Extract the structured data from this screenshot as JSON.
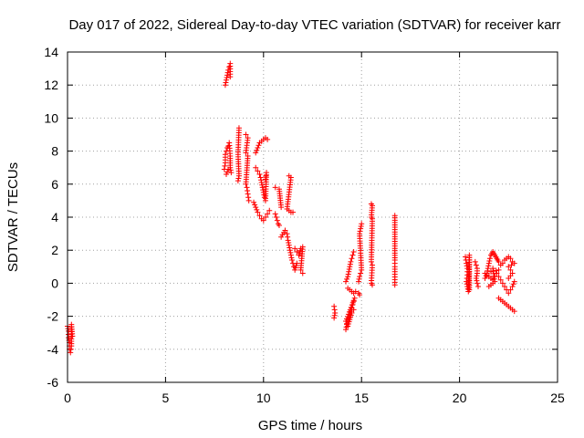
{
  "chart_data": {
    "type": "scatter",
    "title": "Day 017 of 2022, Sidereal Day-to-day VTEC variation (SDTVAR) for receiver karr",
    "xlabel": "GPS time / hours",
    "ylabel": "SDTVAR / TECUs",
    "xlim": [
      0,
      25
    ],
    "ylim": [
      -6,
      14
    ],
    "xticks": [
      0,
      5,
      10,
      15,
      20,
      25
    ],
    "yticks": [
      -6,
      -4,
      -2,
      0,
      2,
      4,
      6,
      8,
      10,
      12,
      14
    ],
    "grid": true,
    "marker": "plus",
    "color": "#ff0000",
    "series": [
      {
        "name": "SDTVAR",
        "segments": [
          [
            [
              0.0,
              -2.6
            ],
            [
              0.05,
              -2.9
            ],
            [
              0.05,
              -3.3
            ],
            [
              0.1,
              -3.6
            ],
            [
              0.1,
              -4.0
            ],
            [
              0.15,
              -4.2
            ],
            [
              0.2,
              -3.8
            ],
            [
              0.2,
              -2.5
            ],
            [
              0.25,
              -3.2
            ]
          ],
          [
            [
              8.05,
              12.0
            ],
            [
              8.1,
              12.3
            ],
            [
              8.15,
              12.6
            ],
            [
              8.2,
              12.9
            ],
            [
              8.25,
              13.1
            ],
            [
              8.3,
              13.3
            ],
            [
              8.3,
              12.5
            ]
          ],
          [
            [
              8.0,
              6.9
            ],
            [
              8.05,
              7.3
            ],
            [
              8.05,
              7.8
            ],
            [
              8.1,
              8.0
            ],
            [
              8.15,
              8.2
            ],
            [
              8.2,
              8.3
            ],
            [
              8.25,
              8.5
            ],
            [
              8.3,
              7.7
            ],
            [
              8.3,
              7.0
            ],
            [
              8.35,
              6.7
            ],
            [
              8.2,
              6.9
            ],
            [
              8.1,
              6.6
            ]
          ],
          [
            [
              8.75,
              9.4
            ],
            [
              8.7,
              7.8
            ],
            [
              8.75,
              6.5
            ],
            [
              8.7,
              6.2
            ]
          ],
          [
            [
              9.1,
              9.0
            ],
            [
              9.2,
              8.8
            ],
            [
              9.1,
              7.9
            ],
            [
              9.2,
              7.7
            ],
            [
              9.1,
              6.0
            ],
            [
              9.15,
              5.8
            ],
            [
              9.2,
              5.4
            ],
            [
              9.25,
              5.0
            ]
          ],
          [
            [
              9.6,
              7.9
            ],
            [
              9.7,
              8.2
            ],
            [
              9.8,
              8.5
            ],
            [
              9.9,
              8.6
            ],
            [
              10.0,
              8.7
            ],
            [
              10.1,
              8.8
            ],
            [
              10.2,
              8.7
            ]
          ],
          [
            [
              9.6,
              7.0
            ],
            [
              9.7,
              6.8
            ],
            [
              9.8,
              6.6
            ],
            [
              9.85,
              6.4
            ],
            [
              9.9,
              6.1
            ],
            [
              9.95,
              5.8
            ],
            [
              10.0,
              5.5
            ],
            [
              10.05,
              5.2
            ],
            [
              10.1,
              5.0
            ],
            [
              10.15,
              6.7
            ],
            [
              10.1,
              6.3
            ]
          ],
          [
            [
              9.5,
              4.9
            ],
            [
              9.6,
              4.6
            ],
            [
              9.7,
              4.3
            ],
            [
              9.8,
              4.1
            ],
            [
              9.9,
              3.9
            ],
            [
              10.0,
              3.8
            ],
            [
              10.1,
              4.0
            ],
            [
              10.2,
              4.2
            ],
            [
              10.3,
              4.4
            ]
          ],
          [
            [
              10.6,
              5.8
            ],
            [
              10.8,
              5.7
            ],
            [
              10.9,
              4.6
            ]
          ],
          [
            [
              10.6,
              4.2
            ],
            [
              10.65,
              4.0
            ],
            [
              10.7,
              3.8
            ],
            [
              10.75,
              3.6
            ],
            [
              10.8,
              3.5
            ]
          ],
          [
            [
              11.3,
              6.5
            ],
            [
              11.4,
              6.4
            ],
            [
              11.2,
              4.5
            ],
            [
              11.3,
              4.4
            ],
            [
              11.4,
              4.3
            ],
            [
              11.5,
              4.3
            ]
          ],
          [
            [
              10.9,
              2.8
            ],
            [
              11.1,
              3.2
            ],
            [
              11.2,
              3.0
            ],
            [
              11.25,
              2.6
            ],
            [
              11.3,
              2.3
            ],
            [
              11.35,
              2.0
            ],
            [
              11.4,
              1.7
            ],
            [
              11.45,
              1.4
            ],
            [
              11.5,
              1.2
            ],
            [
              11.55,
              1.0
            ],
            [
              11.6,
              0.8
            ],
            [
              11.7,
              1.2
            ]
          ],
          [
            [
              11.6,
              2.1
            ],
            [
              11.7,
              1.9
            ],
            [
              11.8,
              1.7
            ],
            [
              11.9,
              2.1
            ],
            [
              12.0,
              2.2
            ],
            [
              11.9,
              0.8
            ],
            [
              12.0,
              0.6
            ]
          ],
          [
            [
              13.6,
              -1.4
            ],
            [
              13.65,
              -1.8
            ],
            [
              13.6,
              -2.1
            ]
          ],
          [
            [
              14.2,
              -2.8
            ],
            [
              14.25,
              -2.5
            ],
            [
              14.3,
              -2.3
            ],
            [
              14.35,
              -2.1
            ],
            [
              14.4,
              -1.9
            ],
            [
              14.45,
              -1.7
            ],
            [
              14.5,
              -1.5
            ],
            [
              14.55,
              -1.3
            ],
            [
              14.6,
              -1.1
            ],
            [
              14.65,
              -0.9
            ],
            [
              14.2,
              -2.3
            ],
            [
              14.3,
              -2.6
            ],
            [
              14.4,
              -2.2
            ],
            [
              14.5,
              -1.8
            ],
            [
              14.6,
              -1.6
            ]
          ],
          [
            [
              14.2,
              0.1
            ],
            [
              14.3,
              0.4
            ],
            [
              14.35,
              0.7
            ],
            [
              14.4,
              1.0
            ],
            [
              14.45,
              1.3
            ],
            [
              14.5,
              1.5
            ],
            [
              14.55,
              1.7
            ],
            [
              14.6,
              1.9
            ]
          ],
          [
            [
              14.3,
              -0.3
            ],
            [
              14.4,
              -0.4
            ],
            [
              14.5,
              -0.5
            ],
            [
              14.6,
              -0.6
            ],
            [
              14.7,
              -0.5
            ],
            [
              14.85,
              -0.6
            ],
            [
              14.9,
              -0.7
            ]
          ],
          [
            [
              14.85,
              0.1
            ],
            [
              14.9,
              0.4
            ],
            [
              14.95,
              0.6
            ],
            [
              15.0,
              0.8
            ],
            [
              14.9,
              3.0
            ],
            [
              14.95,
              3.3
            ],
            [
              15.0,
              3.6
            ]
          ],
          [
            [
              15.5,
              4.8
            ],
            [
              15.55,
              4.7
            ],
            [
              15.5,
              4.0
            ],
            [
              15.55,
              3.9
            ],
            [
              15.5,
              1.3
            ],
            [
              15.55,
              1.1
            ],
            [
              15.5,
              0.0
            ],
            [
              15.55,
              -0.1
            ]
          ],
          [
            [
              16.7,
              4.1
            ],
            [
              16.7,
              1.4
            ],
            [
              16.7,
              1.0
            ],
            [
              16.7,
              0.7
            ],
            [
              16.7,
              -0.1
            ]
          ],
          [
            [
              20.3,
              1.6
            ],
            [
              20.35,
              1.2
            ],
            [
              20.4,
              0.9
            ],
            [
              20.4,
              0.5
            ],
            [
              20.35,
              0.1
            ],
            [
              20.4,
              -0.2
            ],
            [
              20.45,
              -0.5
            ],
            [
              20.5,
              1.7
            ],
            [
              20.5,
              -0.4
            ]
          ],
          [
            [
              20.8,
              1.3
            ],
            [
              20.85,
              1.1
            ],
            [
              20.9,
              0.9
            ],
            [
              20.9,
              0.6
            ],
            [
              20.85,
              0.3
            ],
            [
              20.9,
              0.0
            ],
            [
              20.95,
              -0.2
            ]
          ],
          [
            [
              21.3,
              0.3
            ],
            [
              21.4,
              0.6
            ],
            [
              21.45,
              0.9
            ],
            [
              21.5,
              1.2
            ],
            [
              21.55,
              1.5
            ],
            [
              21.6,
              1.7
            ],
            [
              21.65,
              1.8
            ],
            [
              21.7,
              1.9
            ],
            [
              21.75,
              1.8
            ],
            [
              21.8,
              1.7
            ],
            [
              21.85,
              1.6
            ],
            [
              21.9,
              1.5
            ],
            [
              21.95,
              1.4
            ],
            [
              22.0,
              1.3
            ]
          ],
          [
            [
              21.3,
              0.6
            ],
            [
              21.4,
              0.5
            ],
            [
              21.5,
              0.4
            ],
            [
              21.6,
              0.3
            ],
            [
              21.7,
              0.2
            ],
            [
              21.8,
              0.4
            ],
            [
              21.9,
              0.6
            ],
            [
              22.0,
              0.8
            ],
            [
              21.6,
              0.7
            ],
            [
              21.7,
              0.9
            ],
            [
              21.8,
              0.1
            ],
            [
              21.5,
              -0.2
            ]
          ],
          [
            [
              22.0,
              0.4
            ],
            [
              22.1,
              0.2
            ],
            [
              22.2,
              0.0
            ],
            [
              22.3,
              -0.2
            ],
            [
              22.4,
              -0.4
            ],
            [
              22.5,
              -0.6
            ],
            [
              22.6,
              -0.4
            ],
            [
              22.7,
              -0.2
            ],
            [
              22.8,
              0.1
            ]
          ],
          [
            [
              22.1,
              1.1
            ],
            [
              22.2,
              1.2
            ],
            [
              22.3,
              1.4
            ],
            [
              22.4,
              1.5
            ],
            [
              22.5,
              1.6
            ],
            [
              22.6,
              1.5
            ],
            [
              22.7,
              1.3
            ],
            [
              22.8,
              1.2
            ],
            [
              22.5,
              1.0
            ],
            [
              22.6,
              0.8
            ],
            [
              22.7,
              0.6
            ],
            [
              22.5,
              0.3
            ]
          ],
          [
            [
              22.0,
              -0.9
            ],
            [
              22.1,
              -1.0
            ],
            [
              22.2,
              -1.1
            ],
            [
              22.3,
              -1.2
            ],
            [
              22.4,
              -1.3
            ],
            [
              22.5,
              -1.4
            ],
            [
              22.6,
              -1.5
            ],
            [
              22.7,
              -1.6
            ],
            [
              22.8,
              -1.7
            ]
          ]
        ]
      }
    ]
  }
}
